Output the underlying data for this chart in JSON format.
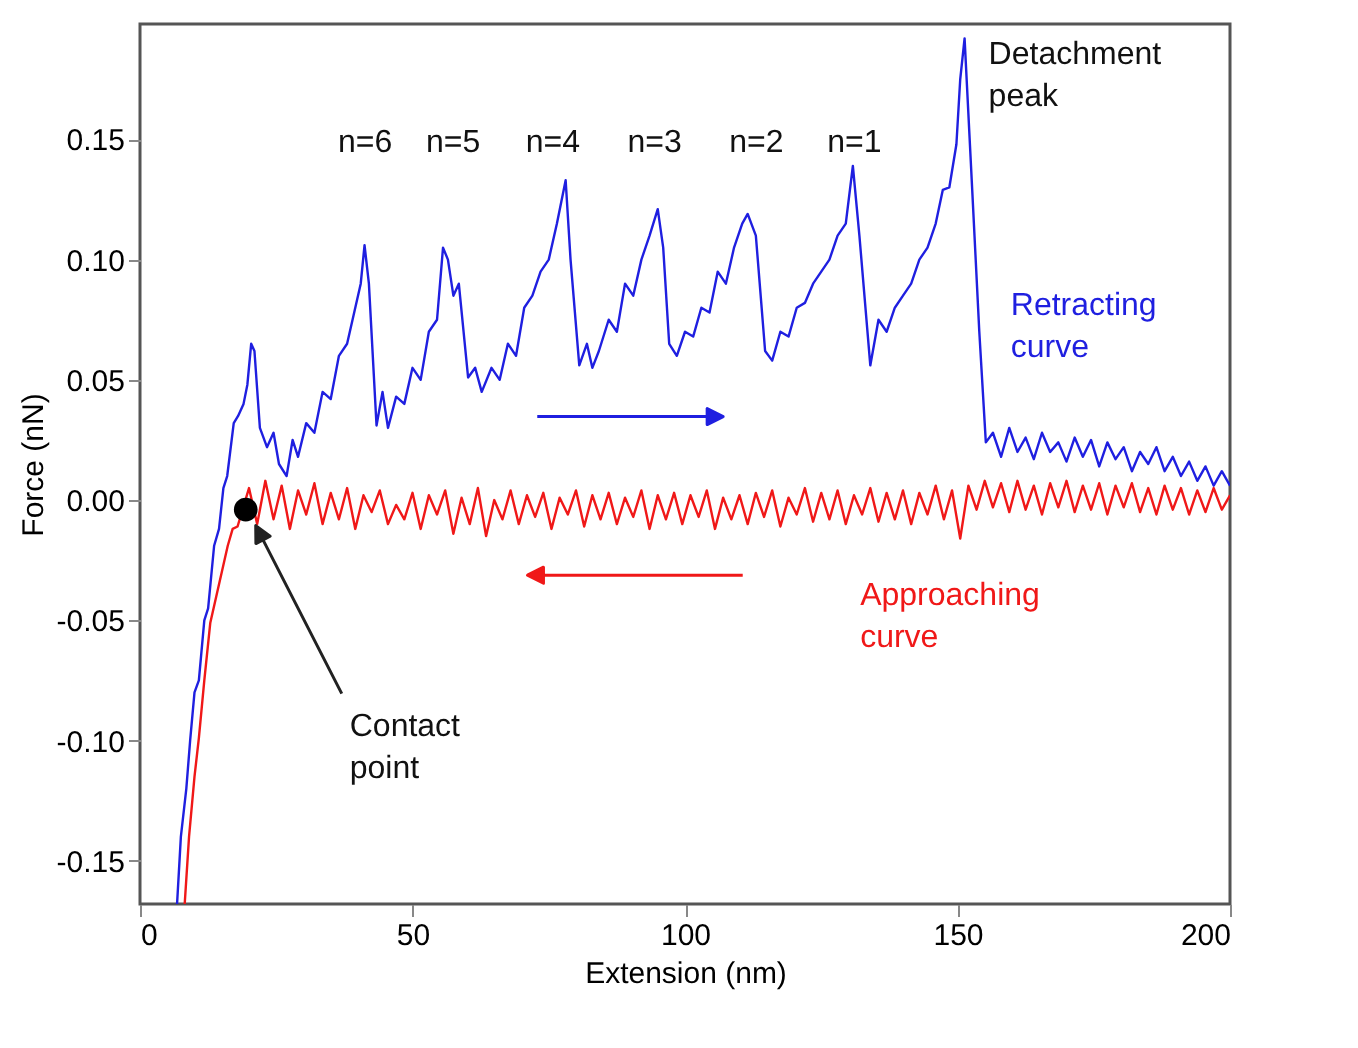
{
  "chart_data": {
    "type": "line",
    "xlabel": "Extension (nm)",
    "ylabel": "Force (nN)",
    "xlim": [
      0,
      200
    ],
    "ylim": [
      -0.168,
      0.198
    ],
    "xticks": [
      0,
      50,
      100,
      150,
      200
    ],
    "yticks": [
      {
        "value": -0.15,
        "label": "-0.15"
      },
      {
        "value": -0.1,
        "label": "-0.10"
      },
      {
        "value": -0.05,
        "label": "-0.05"
      },
      {
        "value": 0,
        "label": "0.00"
      },
      {
        "value": 0.05,
        "label": "0.05"
      },
      {
        "value": 0.1,
        "label": "0.10"
      },
      {
        "value": 0.15,
        "label": "0.15"
      }
    ],
    "grid": false,
    "legend": false,
    "marker": "none",
    "line_style": "solid",
    "series": [
      {
        "name": "Retracting curve",
        "color": "#1f1fe0",
        "x": [
          6.8,
          7.5,
          8.5,
          9.2,
          10,
          10.8,
          11.8,
          12.5,
          13.6,
          14.5,
          15.3,
          16,
          17.2,
          18,
          19,
          19.7,
          20.4,
          21,
          22,
          23.3,
          24.5,
          25.5,
          26.9,
          28,
          29,
          30.5,
          32,
          33.5,
          35,
          36.5,
          38,
          39.5,
          40.5,
          41.2,
          42,
          43.4,
          44.5,
          45.5,
          47,
          48.5,
          50,
          51.5,
          53,
          54.5,
          55.6,
          56.5,
          57.5,
          58.5,
          60.2,
          61.5,
          62.7,
          64.5,
          66,
          67.5,
          69,
          70.5,
          72,
          73.5,
          75,
          76.5,
          78.1,
          79,
          80.6,
          82,
          83,
          84.2,
          86,
          87.5,
          89,
          90.5,
          92,
          93.5,
          95,
          96,
          97.1,
          98.5,
          100,
          101.5,
          103,
          104.5,
          106,
          107.5,
          109,
          110.5,
          111.5,
          113,
          114.7,
          116,
          117.5,
          119,
          120.5,
          122,
          123.5,
          125,
          126.5,
          128,
          129.5,
          130.8,
          132,
          134,
          135.5,
          137,
          138.5,
          140,
          141.5,
          143,
          144.5,
          146,
          147.3,
          148.5,
          149.8,
          150.5,
          151.3,
          152.7,
          154,
          155.2,
          156.5,
          158,
          159.5,
          161,
          162.5,
          164,
          165.5,
          167,
          168.5,
          170,
          171.5,
          173,
          174.5,
          176,
          177.5,
          179,
          180.5,
          182,
          183.5,
          185,
          186.5,
          188,
          189.5,
          191,
          192.5,
          194,
          195.5,
          197,
          198.5,
          200
        ],
        "values": [
          -0.168,
          -0.14,
          -0.12,
          -0.1,
          -0.08,
          -0.075,
          -0.05,
          -0.045,
          -0.019,
          -0.012,
          0.005,
          0.01,
          0.032,
          0.035,
          0.04,
          0.048,
          0.065,
          0.062,
          0.03,
          0.022,
          0.028,
          0.015,
          0.01,
          0.025,
          0.018,
          0.032,
          0.028,
          0.045,
          0.042,
          0.06,
          0.065,
          0.08,
          0.09,
          0.106,
          0.09,
          0.031,
          0.045,
          0.03,
          0.043,
          0.04,
          0.055,
          0.05,
          0.07,
          0.075,
          0.105,
          0.1,
          0.085,
          0.09,
          0.051,
          0.055,
          0.045,
          0.055,
          0.05,
          0.065,
          0.06,
          0.08,
          0.085,
          0.095,
          0.1,
          0.115,
          0.133,
          0.1,
          0.056,
          0.065,
          0.055,
          0.062,
          0.075,
          0.07,
          0.09,
          0.085,
          0.1,
          0.11,
          0.121,
          0.105,
          0.065,
          0.06,
          0.07,
          0.068,
          0.08,
          0.078,
          0.095,
          0.09,
          0.105,
          0.115,
          0.119,
          0.11,
          0.062,
          0.058,
          0.07,
          0.068,
          0.08,
          0.082,
          0.09,
          0.095,
          0.1,
          0.11,
          0.115,
          0.139,
          0.11,
          0.056,
          0.075,
          0.07,
          0.08,
          0.085,
          0.09,
          0.1,
          0.105,
          0.115,
          0.129,
          0.13,
          0.148,
          0.175,
          0.192,
          0.129,
          0.07,
          0.024,
          0.028,
          0.018,
          0.03,
          0.02,
          0.026,
          0.017,
          0.028,
          0.02,
          0.024,
          0.016,
          0.026,
          0.018,
          0.025,
          0.014,
          0.024,
          0.017,
          0.022,
          0.012,
          0.02,
          0.015,
          0.022,
          0.012,
          0.018,
          0.01,
          0.016,
          0.008,
          0.014,
          0.006,
          0.012,
          0.006
        ]
      },
      {
        "name": "Approaching curve",
        "color": "#f01818",
        "x": [
          8.2,
          9,
          10,
          10.8,
          11.8,
          12.9,
          14,
          15,
          16.1,
          17,
          17.9,
          20,
          21.5,
          23,
          24.5,
          26,
          27.5,
          29,
          30.5,
          32,
          33.5,
          35,
          36.5,
          38,
          39.5,
          41,
          42.5,
          44,
          45.5,
          47,
          48.5,
          50,
          51.5,
          53,
          54.5,
          56,
          57.5,
          59,
          60.5,
          62,
          63.5,
          65,
          66.5,
          68,
          69.5,
          71,
          72.5,
          74,
          75.5,
          77,
          78.5,
          80,
          81.5,
          83,
          84.5,
          86,
          87.5,
          89,
          90.5,
          92,
          93.5,
          95,
          96.5,
          98,
          99.5,
          101,
          102.5,
          104,
          105.5,
          107,
          108.5,
          110,
          111.5,
          113,
          114.5,
          116,
          117.5,
          119,
          120.5,
          122,
          123.5,
          125,
          126.5,
          128,
          129.5,
          131,
          132.5,
          134,
          135.5,
          137,
          138.5,
          140,
          141.5,
          143,
          144.5,
          146,
          147.5,
          149,
          150.5,
          152,
          153.5,
          155,
          156.5,
          158,
          159.5,
          161,
          162.5,
          164,
          165.5,
          167,
          168.5,
          170,
          171.5,
          173,
          174.5,
          176,
          177.5,
          179,
          180.5,
          182,
          183.5,
          185,
          186.5,
          188,
          189.5,
          191,
          192.5,
          194,
          195.5,
          197,
          198.5,
          200
        ],
        "values": [
          -0.168,
          -0.14,
          -0.115,
          -0.099,
          -0.075,
          -0.051,
          -0.04,
          -0.03,
          -0.019,
          -0.012,
          -0.011,
          0.005,
          -0.01,
          0.008,
          -0.008,
          0.006,
          -0.012,
          0.004,
          -0.006,
          0.007,
          -0.01,
          0.003,
          -0.008,
          0.005,
          -0.012,
          0.002,
          -0.005,
          0.004,
          -0.01,
          -0.002,
          -0.008,
          0.003,
          -0.012,
          0.002,
          -0.006,
          0.004,
          -0.014,
          0.001,
          -0.01,
          0.005,
          -0.015,
          0,
          -0.008,
          0.004,
          -0.01,
          0.002,
          -0.007,
          0.003,
          -0.012,
          0.001,
          -0.006,
          0.004,
          -0.011,
          0.002,
          -0.008,
          0.003,
          -0.01,
          0.001,
          -0.007,
          0.004,
          -0.012,
          0.002,
          -0.008,
          0.003,
          -0.01,
          0.002,
          -0.007,
          0.004,
          -0.012,
          0.001,
          -0.008,
          0.002,
          -0.01,
          0.003,
          -0.007,
          0.004,
          -0.011,
          0.001,
          -0.006,
          0.005,
          -0.009,
          0.003,
          -0.008,
          0.004,
          -0.01,
          0.002,
          -0.006,
          0.005,
          -0.009,
          0.003,
          -0.008,
          0.004,
          -0.01,
          0.003,
          -0.006,
          0.006,
          -0.008,
          0.004,
          -0.016,
          0.006,
          -0.004,
          0.008,
          -0.003,
          0.007,
          -0.005,
          0.008,
          -0.004,
          0.006,
          -0.006,
          0.007,
          -0.003,
          0.008,
          -0.005,
          0.006,
          -0.004,
          0.007,
          -0.006,
          0.006,
          -0.003,
          0.007,
          -0.005,
          0.005,
          -0.006,
          0.006,
          -0.004,
          0.005,
          -0.006,
          0.004,
          -0.005,
          0.005,
          -0.004,
          0.002
        ]
      },
      {
        "type": "scatter",
        "marker": "circle",
        "color": "#000000",
        "x": [
          19.4
        ],
        "values": [
          -0.004
        ]
      }
    ],
    "annotations": [
      "n=6",
      "n=5",
      "n=4",
      "n=3",
      "n=2",
      "n=1",
      {
        "text": "Detachment peak",
        "x": 151.3,
        "y": 0.192
      },
      "Contact point"
    ]
  }
}
